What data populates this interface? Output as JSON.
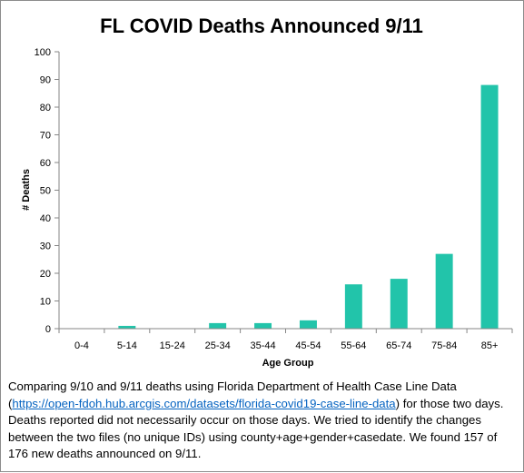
{
  "chart_data": {
    "type": "bar",
    "title": "FL COVID Deaths Announced 9/11",
    "xlabel": "Age Group",
    "ylabel": "# Deaths",
    "categories": [
      "0-4",
      "5-14",
      "15-24",
      "25-34",
      "35-44",
      "45-54",
      "55-64",
      "65-74",
      "75-84",
      "85+"
    ],
    "values": [
      0,
      1,
      0,
      2,
      2,
      3,
      16,
      18,
      27,
      88
    ],
    "ylim": [
      0,
      100
    ],
    "yticks": [
      0,
      10,
      20,
      30,
      40,
      50,
      60,
      70,
      80,
      90,
      100
    ],
    "grid": false,
    "legend": "none",
    "bar_color": "#22c4aa"
  },
  "caption": {
    "text_before_link": "Comparing 9/10 and 9/11  deaths using Florida Department of Health Case Line Data (",
    "link": "https://open-fdoh.hub.arcgis.com/datasets/florida-covid19-case-line-data",
    "text_after_link": ") for those two days. Deaths reported did not necessarily occur on those days. We tried to identify  the changes between the two files (no unique IDs) using county+age+gender+casedate. We found 157 of 176 new deaths announced on 9/11."
  }
}
